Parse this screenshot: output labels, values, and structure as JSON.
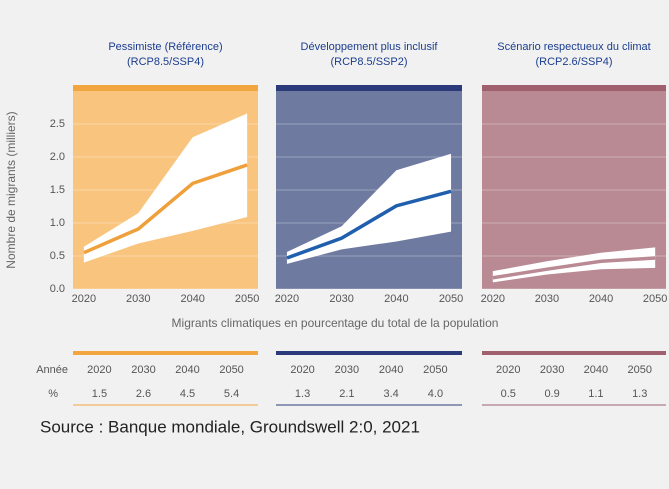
{
  "chart_data": [
    {
      "type": "band-line",
      "title": "Pessimiste (Référence)",
      "subtitle": "(RCP8.5/SSP4)",
      "x": [
        2020,
        2030,
        2040,
        2050
      ],
      "xlim": [
        2018,
        2052
      ],
      "xticks": [
        2020,
        2030,
        2040,
        2050
      ],
      "ylim": [
        0,
        3
      ],
      "yticks": [
        {
          "value": 0,
          "label": "0.0"
        },
        0.5,
        {
          "value": 1,
          "label": "1.0"
        },
        1.5,
        {
          "value": 2,
          "label": "2.0"
        },
        2.5
      ],
      "median": [
        0.55,
        0.91,
        1.6,
        1.88
      ],
      "band_high": [
        0.64,
        1.15,
        2.3,
        2.66
      ],
      "band_low": [
        0.4,
        0.69,
        0.88,
        1.09
      ],
      "background": "#f9c57e",
      "accent": "#f3a540",
      "color": "#f0a03a"
    },
    {
      "type": "band-line",
      "title": "Développement plus inclusif",
      "subtitle": "(RCP8.5/SSP2)",
      "x": [
        2020,
        2030,
        2040,
        2050
      ],
      "xlim": [
        2018,
        2052
      ],
      "xticks": [
        2020,
        2030,
        2040,
        2050
      ],
      "ylim": [
        0,
        3
      ],
      "median": [
        0.47,
        0.77,
        1.26,
        1.48
      ],
      "band_high": [
        0.56,
        0.95,
        1.8,
        2.05
      ],
      "band_low": [
        0.38,
        0.6,
        0.72,
        0.87
      ],
      "background": "#6e7aa0",
      "accent": "#2b3a7a",
      "color": "#1f5fad"
    },
    {
      "type": "band-line",
      "title": "Scénario respectueux du climat",
      "subtitle": "(RCP2.6/SSP4)",
      "x": [
        2020,
        2030,
        2040,
        2050
      ],
      "xlim": [
        2018,
        2052
      ],
      "xticks": [
        2020,
        2030,
        2040,
        2050
      ],
      "ylim": [
        0,
        3
      ],
      "median": [
        0.17,
        0.3,
        0.42,
        0.47
      ],
      "band_high": [
        0.27,
        0.42,
        0.55,
        0.63
      ],
      "band_low": [
        0.1,
        0.22,
        0.3,
        0.32
      ],
      "background": "#b98a94",
      "accent": "#a0606e",
      "color": "#b98a94"
    }
  ],
  "y_axis_label": "Nombre de migrants (milliers)",
  "x_axis_label": "Migrants climatiques en pourcentage du total de la population",
  "table": {
    "row_labels": [
      "Année",
      "%"
    ],
    "groups": [
      {
        "years": [
          "2020",
          "2030",
          "2040",
          "2050"
        ],
        "percents": [
          "1.5",
          "2.6",
          "4.5",
          "5.4"
        ]
      },
      {
        "years": [
          "2020",
          "2030",
          "2040",
          "2050"
        ],
        "percents": [
          "1.3",
          "2.1",
          "3.4",
          "4.0"
        ]
      },
      {
        "years": [
          "2020",
          "2030",
          "2040",
          "2050"
        ],
        "percents": [
          "0.5",
          "0.9",
          "1.1",
          "1.3"
        ]
      }
    ]
  },
  "source": "Source : Banque mondiale, Groundswell 2:0, 2021"
}
